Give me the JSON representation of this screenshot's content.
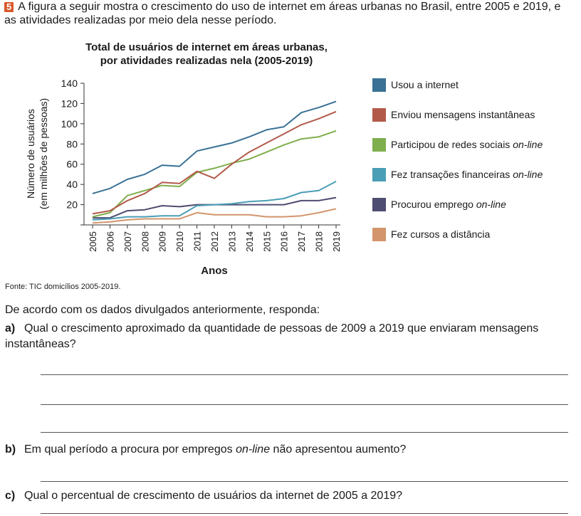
{
  "exercise": {
    "number": "5",
    "intro": "A figura a seguir mostra o crescimento do uso de internet em áreas urbanas no Brasil, entre 2005 e 2019, e as atividades realizadas por meio dela nesse período."
  },
  "chart_title_line1": "Total de usuários de internet em áreas urbanas,",
  "chart_title_line2": "por atividades realizadas nela (2005-2019)",
  "chart_data": {
    "type": "line",
    "title": "Total de usuários de internet em áreas urbanas, por atividades realizadas nela (2005-2019)",
    "xlabel": "Anos",
    "ylabel_line1": "Número de usuários",
    "ylabel_line2": "(em milhões de pessoas)",
    "ylim": [
      0,
      140
    ],
    "yticks": [
      20,
      40,
      60,
      80,
      100,
      120,
      140
    ],
    "x": [
      "2005",
      "2006",
      "2007",
      "2008",
      "2009",
      "2010",
      "2011",
      "2012",
      "2013",
      "2014",
      "2015",
      "2016",
      "2017",
      "2018",
      "2019"
    ],
    "grid": false,
    "legend_position": "right",
    "series": [
      {
        "name": "Usou a internet",
        "color": "#3a7195",
        "values": [
          31,
          36,
          45,
          50,
          59,
          58,
          73,
          77,
          81,
          87,
          94,
          97,
          111,
          116,
          122
        ]
      },
      {
        "name": "Enviou mensagens instantâneas",
        "color": "#b25a4a",
        "values": [
          11,
          14,
          24,
          31,
          42,
          41,
          53,
          46,
          60,
          72,
          81,
          90,
          99,
          105,
          112
        ]
      },
      {
        "name": "Participou de redes sociais on-line",
        "color": "#7fae4c",
        "values": [
          8,
          12,
          29,
          34,
          39,
          38,
          52,
          56,
          61,
          65,
          72,
          79,
          85,
          87,
          93
        ]
      },
      {
        "name": "Fez transações financeiras on-line",
        "color": "#4a9eb5",
        "values": [
          5,
          6,
          8,
          8,
          9,
          9,
          19,
          20,
          21,
          23,
          24,
          26,
          32,
          34,
          43
        ]
      },
      {
        "name": "Procurou emprego on-line",
        "color": "#4e4d72",
        "values": [
          7,
          7,
          14,
          15,
          19,
          18,
          20,
          20,
          20,
          20,
          20,
          20,
          24,
          24,
          27
        ]
      },
      {
        "name": "Fez cursos a distância",
        "color": "#d3956b",
        "values": [
          2,
          3,
          5,
          6,
          6,
          6,
          12,
          10,
          10,
          10,
          8,
          8,
          9,
          12,
          16
        ]
      }
    ]
  },
  "legend_labels": [
    {
      "main": "Usou a internet",
      "italic": ""
    },
    {
      "main": "Enviou mensagens instantâneas",
      "italic": ""
    },
    {
      "main": "Participou de redes sociais ",
      "italic": "on-line"
    },
    {
      "main": "Fez transações financeiras ",
      "italic": "on-line"
    },
    {
      "main": "Procurou emprego ",
      "italic": "on-line"
    },
    {
      "main": "Fez cursos a distância",
      "italic": ""
    }
  ],
  "source": "Fonte: TIC domicílios 2005-2019.",
  "prompt": "De acordo com os dados divulgados anteriormente, responda:",
  "questions": {
    "a": {
      "letter": "a)",
      "text": "Qual o crescimento aproximado da quantidade de pessoas de 2009 a 2019 que enviaram mensagens instantâneas?"
    },
    "b": {
      "letter": "b)",
      "text_before": "Em qual período a procura por empregos ",
      "text_italic": "on-line",
      "text_after": " não apresentou aumento?"
    },
    "c": {
      "letter": "c)",
      "text": "Qual o percentual de crescimento de usuários da internet de 2005 a 2019?"
    }
  }
}
